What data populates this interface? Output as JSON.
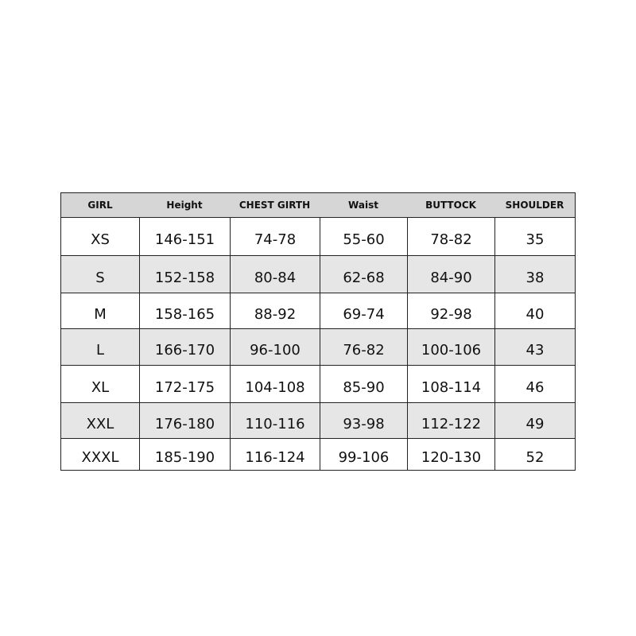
{
  "table": {
    "header": [
      "GIRL",
      "Height",
      "CHEST GIRTH",
      "Waist",
      "BUTTOCK",
      "SHOULDER"
    ],
    "rows": [
      [
        "XS",
        "146-151",
        "74-78",
        "55-60",
        "78-82",
        35
      ],
      [
        "S",
        "152-158",
        "80-84",
        "62-68",
        "84-90",
        38
      ],
      [
        "M",
        "158-165",
        "88-92",
        "69-74",
        "92-98",
        40
      ],
      [
        "L",
        "166-170",
        "96-100",
        "76-82",
        "100-106",
        43
      ],
      [
        "XL",
        "172-175",
        "104-108",
        "85-90",
        "108-114",
        46
      ],
      [
        "XXL",
        "176-180",
        "110-116",
        "93-98",
        "112-122",
        49
      ],
      [
        "XXXL",
        "185-190",
        "116-124",
        "99-106",
        "120-130",
        52
      ]
    ]
  }
}
